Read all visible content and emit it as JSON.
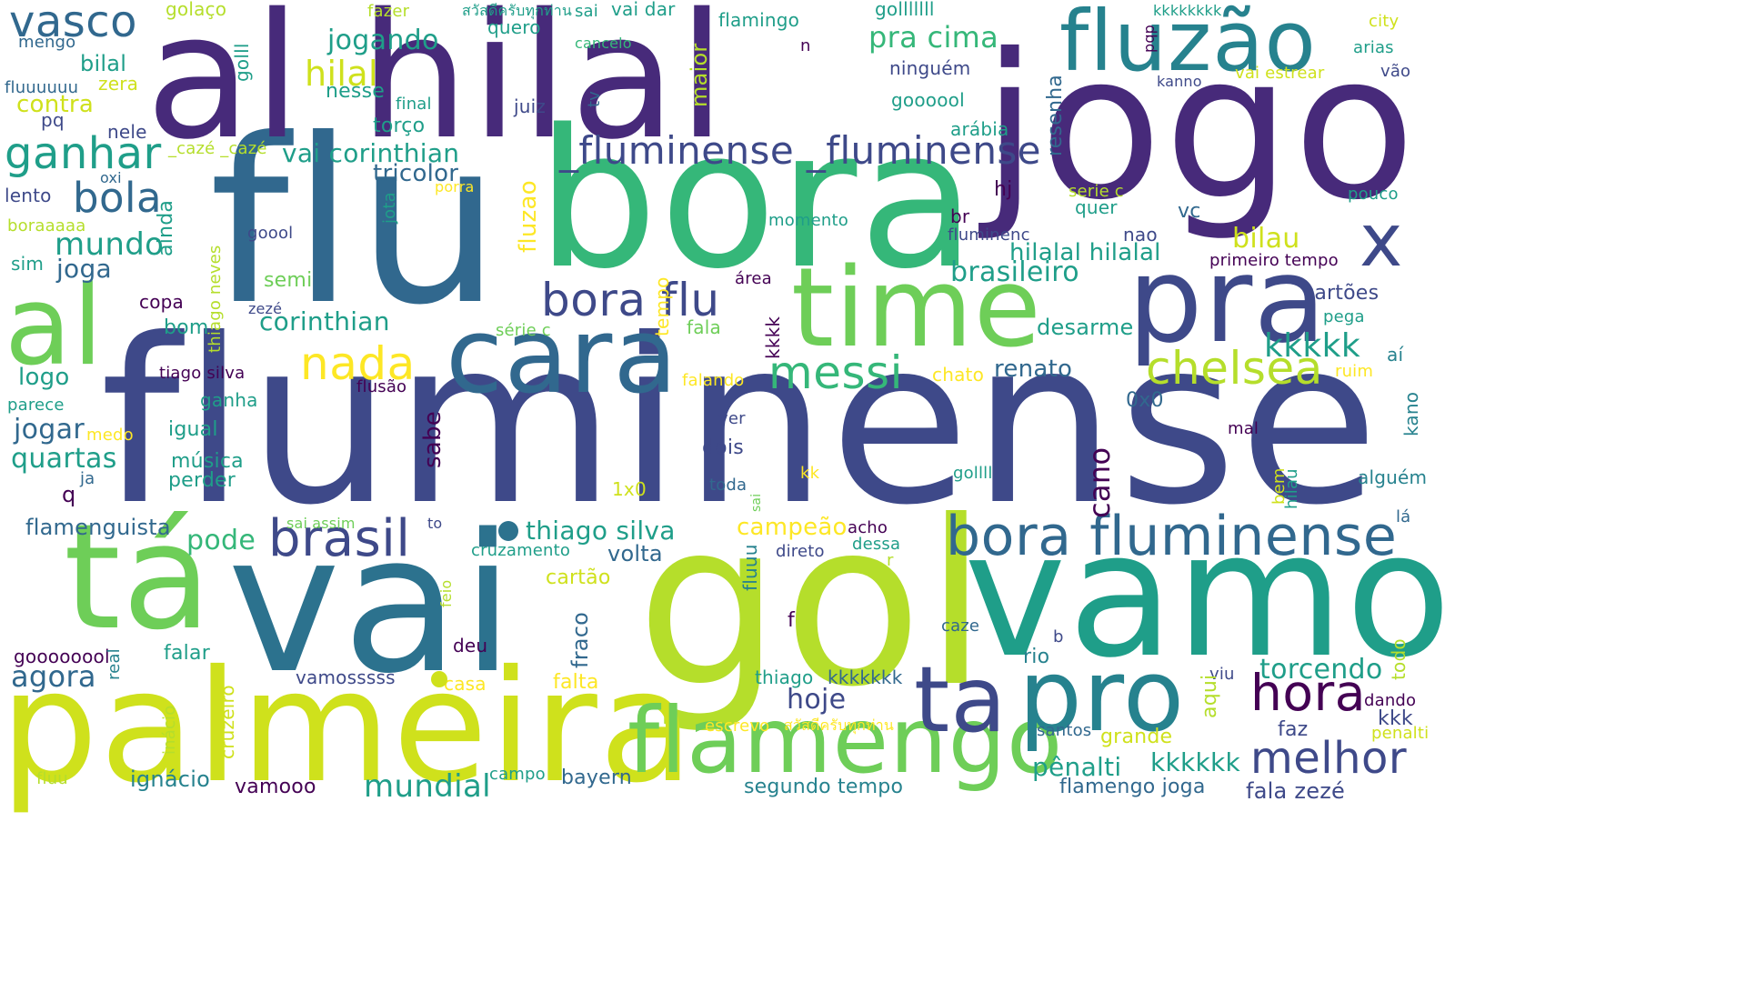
{
  "words": {
    "fluminense": "fluminense",
    "flu": "flu",
    "bora": "bora",
    "jogo": "jogo",
    "al_hilal": "al hilal",
    "vai": "vai",
    "gol": "gol",
    "vamo": "vamo",
    "palmeira": "palmeira",
    "ta_accent": "tá",
    "pra": "pra",
    "time": "time",
    "cara": "cara",
    "al": "al",
    "fluzao": "fluzão",
    "flamengo": "flamengo",
    "pro": "pro",
    "ta": "ta",
    "x": "x",
    "bora_fluminense": "bora fluminense",
    "fluminense_fluminense": "_fluminense _fluminense",
    "brasil": "brasil",
    "bora_flu": "bora flu",
    "messi": "messi",
    "chelsea": "chelsea",
    "hora": "hora",
    "melhor": "melhor",
    "nada": "nada",
    "vasco": "vasco",
    "ganhar": "ganhar",
    "bola": "bola",
    "mundo": "mundo",
    "mundial": "mundial",
    "pra_cima": "pra cima",
    "jogando": "jogando",
    "hilal": "hilal",
    "kkkkk": "kkkkk",
    "torcendo": "torcendo",
    "agora": "agora",
    "hoje": "hoje",
    "brasileiro": "brasileiro",
    "corinthian": "corinthian",
    "vai_corinthian": "vai corinthian",
    "tricolor": "tricolor",
    "joga": "joga",
    "pode": "pode",
    "quartas": "quartas",
    "jogar": "jogar",
    "thiago_silva": "thiago silva",
    "campeao": "campeão",
    "bilau": "bilau",
    "penalti": "pênalti",
    "kkkkkk": "kkkkkk",
    "renato": "renato",
    "desarme": "desarme",
    "cartoes": "cartões",
    "hilalal": "hilalal hilalal",
    "fala_zeze": "fala zezé",
    "flamengo_joga": "flamengo joga",
    "segundo_tempo": "segundo tempo",
    "bayern": "bayern",
    "ignacio": "ignácio",
    "vamooo": "vamooo",
    "flamenguista": "flamenguista",
    "volta": "volta",
    "cartao": "cartão",
    "falta": "falta",
    "falar": "falar",
    "deu": "deu",
    "casa": "casa",
    "vamossss": "vamosssss",
    "thiago": "thiago",
    "kkkkkkk": "kkkkkkk",
    "rio": "rio",
    "faz": "faz",
    "grande": "grande",
    "santos": "santos",
    "kkk": "kkk",
    "dando": "dando",
    "penalti2": "penalti",
    "viu": "viu",
    "escrevo": "escrevo",
    "bilal": "bilal",
    "zera": "zera",
    "mengo": "mengo",
    "fluuuuuu": "fluuuuuu",
    "contra": "contra",
    "pq": "pq",
    "nele": "nele",
    "oxi": "oxi",
    "lento": "lento",
    "boraaaaa": "boraaaaa",
    "sim": "sim",
    "logo": "logo",
    "parece": "parece",
    "medo": "medo",
    "ja": "ja",
    "q": "q",
    "gooooool": "goooooool",
    "real": "real",
    "fluu": "fluu",
    "golaco": "golaço",
    "fazer": "fazer",
    "sai": "sai",
    "vai_dar": "vai dar",
    "quero": "quero",
    "cancelo": "cancelo",
    "flamingo": "flamingo",
    "golllllll": "golllllll",
    "n": "n",
    "ninguem": "ninguém",
    "goooool": "goooool",
    "arabia": "arábia",
    "juiz": "juiz",
    "final": "final",
    "nesse": "nesse",
    "torco": "torço",
    "caze": "_cazé _cazé",
    "copa": "copa",
    "bom": "bom",
    "tiago_silva": "tiago silva",
    "ganha": "ganha",
    "igual": "igual",
    "musica": "música",
    "perder": "perder",
    "semi": "semi",
    "zeze": "zezé",
    "goool": "goool",
    "porra": "porra",
    "ainda": "ainda",
    "fluzao2": "fluzao",
    "jota": "jota",
    "thiago_neves": "thiago neves",
    "tempo": "tempo",
    "serie_c": "série c",
    "fala": "fala",
    "kkkk": "kkkk",
    "falando": "falando",
    "flusao": "flusão",
    "chato": "chato",
    "ver": "ver",
    "dois": "dois",
    "sabe": "sabe",
    "kk": "kk",
    "toda": "toda",
    "x1x0": "1x0",
    "x0x0": "0x0",
    "mal": "mal",
    "hilau": "hilau",
    "bem": "bem",
    "alguem": "alguém",
    "la": "lá",
    "kano": "kano",
    "ai": "aí",
    "ruim": "ruim",
    "pega": "pega",
    "primeiro_tempo": "primeiro tempo",
    "pouco": "pouco",
    "serie_c2": "serie c",
    "quer": "quer",
    "vc": "vc",
    "nao": "nao",
    "br": "br",
    "hj": "hj",
    "fluminenc": "fluminenc",
    "momento": "momento",
    "area": "área",
    "resenha": "resenha",
    "maior": "maior",
    "tv": "tv",
    "golll": "golll",
    "city": "city",
    "arias": "arias",
    "vao": "vão",
    "kanno": "kanno",
    "vai_estrear": "vai estrear",
    "pqp": "pqp",
    "kkkkkkkk": "kkkkkkkk",
    "cano": "cano",
    "aqui": "aqui",
    "sai_assim": "sai assim",
    "to": "to",
    "cruzamento": "cruzamento",
    "direto": "direto",
    "acho": "acho",
    "dessa": "dessa",
    "r": "r",
    "fluuu": "fluuu",
    "f": "f",
    "caze2": "caze",
    "b": "b",
    "fraco": "fraco",
    "feio": "feio",
    "sai2": "sai",
    "cruzeiro": "cruzeiro",
    "inacio": "inácio",
    "todo": "todo",
    "campo": "campo",
    "gollll": "gollll",
    "thai1": "สวัสดีครับทุกท่าน",
    "thai2": "สวัสดีครับทุกท่าน"
  }
}
